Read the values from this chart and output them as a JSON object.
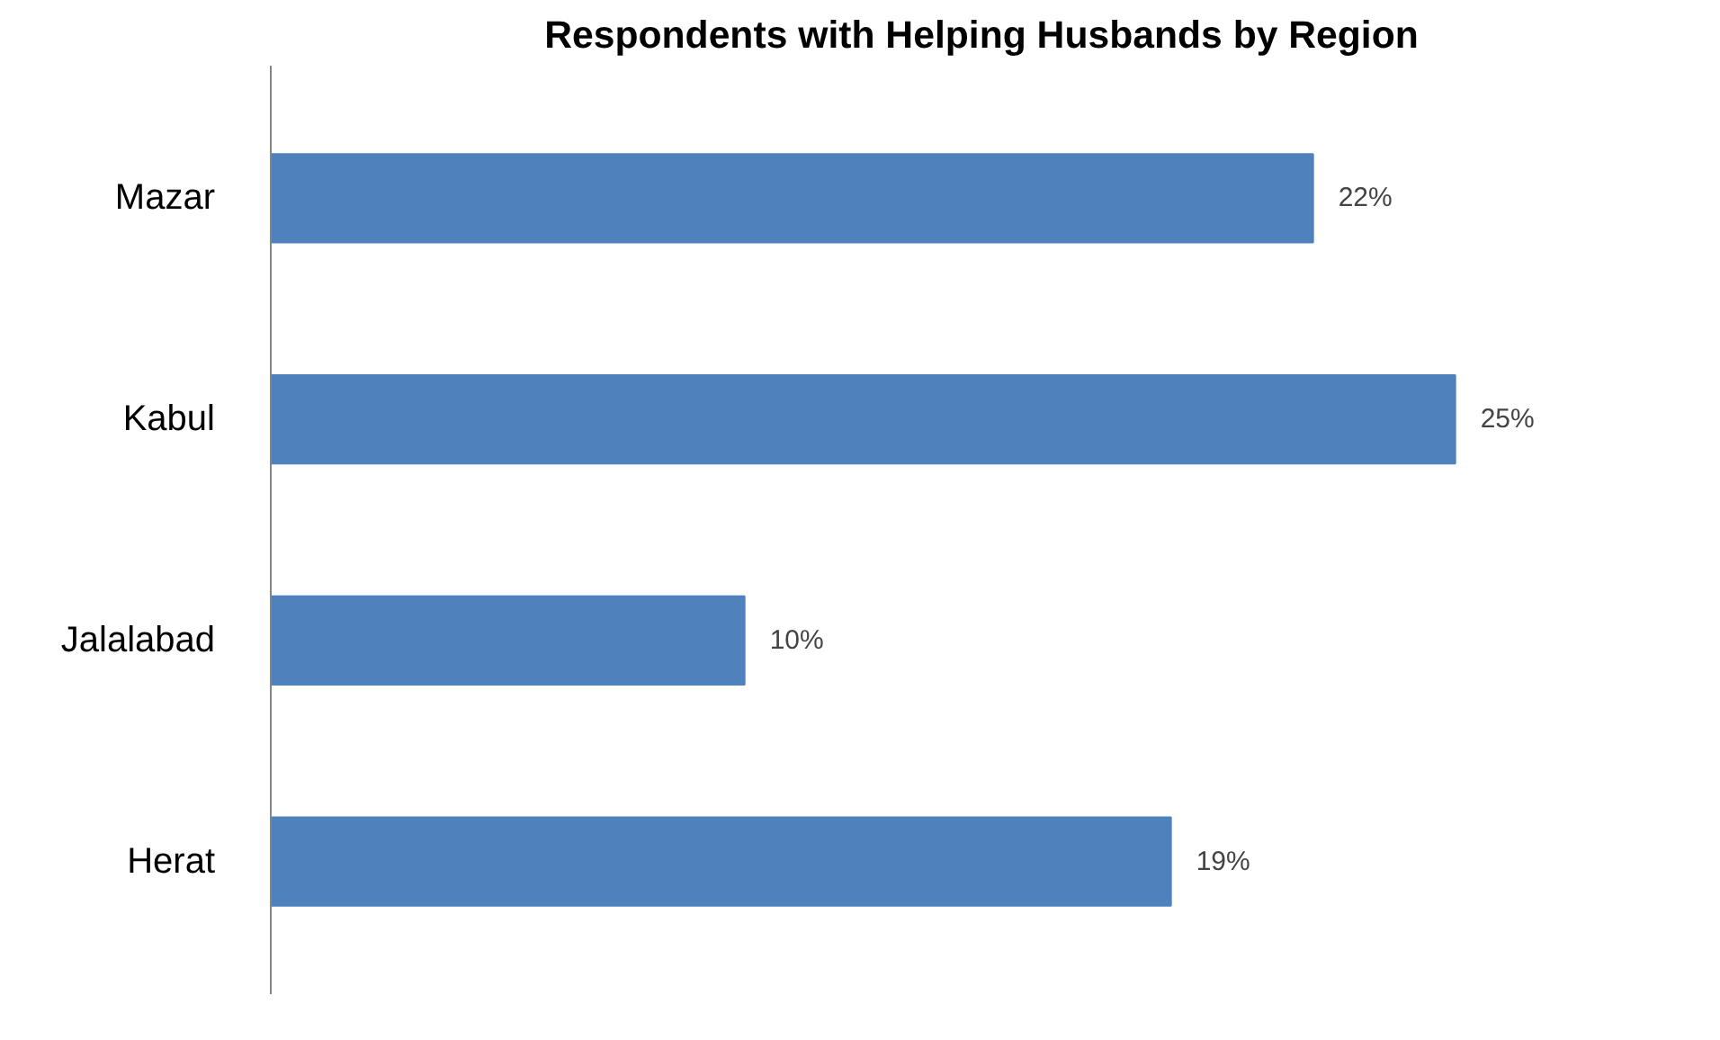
{
  "chart_data": {
    "type": "bar",
    "orientation": "horizontal",
    "title": "Respondents with Helping Husbands by Region",
    "categories": [
      "Mazar",
      "Kabul",
      "Jalalabad",
      "Herat"
    ],
    "values": [
      22,
      25,
      10,
      19
    ],
    "value_labels": [
      "22%",
      "25%",
      "10%",
      "19%"
    ],
    "color": "#4f81bd",
    "tick_labels": "y",
    "grid": false
  }
}
